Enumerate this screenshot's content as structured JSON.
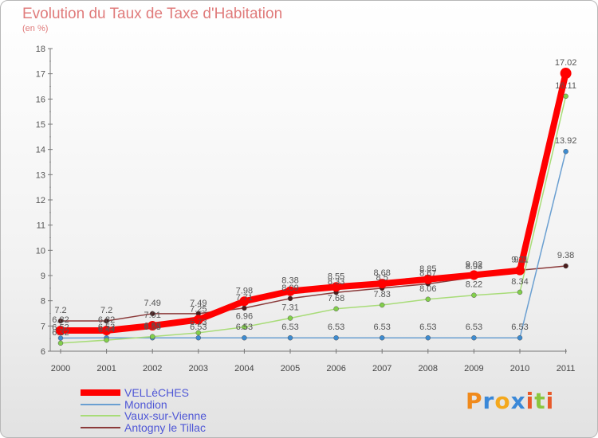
{
  "title": "Evolution du Taux de Taxe d'Habitation",
  "subtitle": "(en %)",
  "logo": {
    "text": "Proxiti",
    "letters": [
      "P",
      "r",
      "o",
      "x",
      "i",
      "t",
      "i"
    ],
    "colors": [
      "#f08a1c",
      "#3a88d8",
      "#f4a81c",
      "#3a88d8",
      "#e85a2a",
      "#8bc63e",
      "#e85a2a"
    ]
  },
  "chart_data": {
    "type": "line",
    "x": [
      "2000",
      "2001",
      "2002",
      "2003",
      "2004",
      "2005",
      "2006",
      "2007",
      "2008",
      "2009",
      "2010",
      "2011"
    ],
    "ylim": [
      6,
      18
    ],
    "yticks": [
      "6",
      "7",
      "8",
      "9",
      "10",
      "11",
      "12",
      "13",
      "14",
      "15",
      "16",
      "17",
      "18"
    ],
    "grid": false,
    "legend_position": "bottom-left",
    "series": [
      {
        "name": "VELLèCHES",
        "color": "#ff0000",
        "dot_color": "#ff0000",
        "values": [
          6.82,
          6.82,
          7.01,
          7.25,
          7.98,
          8.38,
          8.55,
          8.68,
          8.85,
          9.02,
          9.2,
          17.02
        ],
        "labels": [
          "6.82",
          "6.82",
          "7.01",
          "7.25",
          "7.98",
          "8.38",
          "8.55",
          "8.68",
          "8.85",
          "9.02",
          "9.2",
          "17.02"
        ]
      },
      {
        "name": "Mondion",
        "color": "#6a9fd1",
        "dot_color": "#3d8bd0",
        "values": [
          6.52,
          6.53,
          6.53,
          6.53,
          6.53,
          6.53,
          6.53,
          6.53,
          6.53,
          6.53,
          6.53,
          13.92
        ],
        "labels": [
          "6.52",
          "6.53",
          "6.53",
          "6.53",
          "6.53",
          "6.53",
          "6.53",
          "6.53",
          "6.53",
          "6.53",
          "6.53",
          "13.92"
        ]
      },
      {
        "name": "Vaux-sur-Vienne",
        "color": "#a8dc78",
        "dot_color": "#82cf4b",
        "values": [
          6.32,
          6.44,
          6.58,
          6.73,
          6.96,
          7.31,
          7.68,
          7.83,
          8.06,
          8.22,
          8.34,
          16.11
        ],
        "labels": [
          "6.32",
          "6.44",
          "6.58",
          "6.73",
          "6.96",
          "7.31",
          "7.68",
          "7.83",
          "8.06",
          "8.22",
          "8.34",
          "16.11"
        ]
      },
      {
        "name": "Antogny le Tillac",
        "color": "#8b3a3a",
        "dot_color": "#4a1c1c",
        "values": [
          7.2,
          7.2,
          7.49,
          7.49,
          7.71,
          8.09,
          8.33,
          8.5,
          8.67,
          8.93,
          9.21,
          9.38
        ],
        "labels": [
          "7.2",
          "7.2",
          "7.49",
          "7.49",
          "7.71",
          "8.09",
          "8.33",
          "8.5",
          "8.67",
          "8.93",
          "9.21",
          "9.38"
        ]
      }
    ]
  }
}
